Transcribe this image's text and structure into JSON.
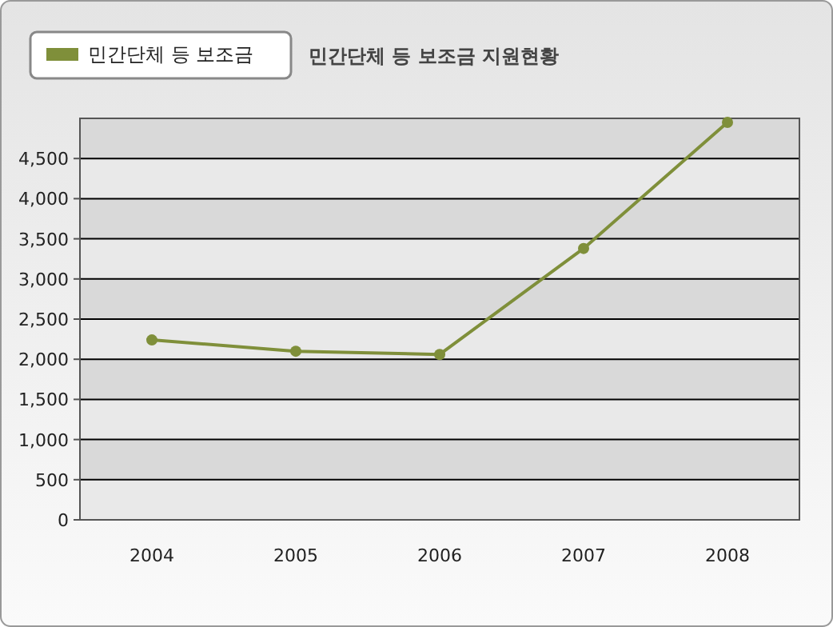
{
  "chart_data": {
    "type": "line",
    "title": "민간단체 등 보조금 지원현황",
    "categories": [
      "2004",
      "2005",
      "2006",
      "2007",
      "2008"
    ],
    "series": [
      {
        "name": "민간단체 등 보조금",
        "color": "#7f8f3a",
        "values": [
          2240,
          2100,
          2060,
          3380,
          4950
        ]
      }
    ],
    "ylim": [
      0,
      5000
    ],
    "yticks": [
      0,
      {
        "value": 500,
        "label": "500"
      },
      {
        "value": 1000,
        "label": "1,000"
      },
      {
        "value": 1500,
        "label": "1,500"
      },
      {
        "value": 2000,
        "label": "2,000"
      },
      {
        "value": 2500,
        "label": "2,500"
      },
      {
        "value": 3000,
        "label": "3,000"
      },
      {
        "value": 3500,
        "label": "3,500"
      },
      {
        "value": 4000,
        "label": "4,000"
      },
      {
        "value": 4500,
        "label": "4,500"
      }
    ],
    "grid": "y",
    "legend": "top left",
    "marker": "circle",
    "line_style": "solid"
  }
}
